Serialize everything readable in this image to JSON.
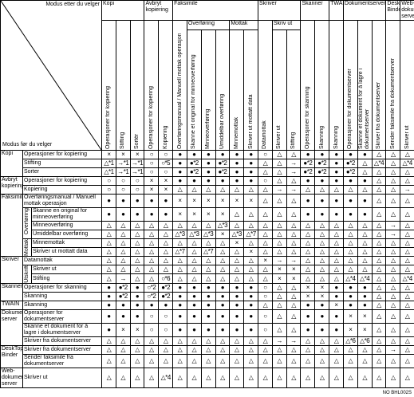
{
  "header": {
    "corner_top": "Modus etter du velger",
    "corner_bottom": "Modus før du velger"
  },
  "column_groups": [
    {
      "label": "Kopi",
      "subgroups": [
        {
          "columns": [
            "Operasjoner for kopiering",
            "Stifting",
            "Sortér"
          ]
        }
      ]
    },
    {
      "label": "Avbryt kopiering",
      "subgroups": [
        {
          "columns": [
            "Operasjoner for kopiering",
            "Kopiering"
          ]
        }
      ]
    },
    {
      "label": "Faksimile",
      "subgroups": [
        {
          "columns": [
            "Overføringsmanual / Manuell mottak operasjon"
          ]
        },
        {
          "label": "Overføring",
          "columns": [
            "Skanne et original for minneoverføring",
            "Minneoverføring",
            "Umiddelbar overføring"
          ]
        },
        {
          "label": "Mottak",
          "columns": [
            "Minnemottak",
            "Skriver ut mottatt data"
          ]
        }
      ]
    },
    {
      "label": "Skriver",
      "subgroups": [
        {
          "columns": [
            "Datamottak"
          ]
        },
        {
          "label": "Skriv ut",
          "columns": [
            "Skriver ut",
            "Stifting"
          ]
        }
      ]
    },
    {
      "label": "Skanner",
      "subgroups": [
        {
          "columns": [
            "Operasjoner for skanning",
            "Skanning"
          ]
        }
      ]
    },
    {
      "label": "TWAIN",
      "subgroups": [
        {
          "columns": [
            "Skanning"
          ]
        }
      ]
    },
    {
      "label": "Dokumentserver",
      "subgroups": [
        {
          "columns": [
            "Operasjoner for dokumentserver",
            "Skanne et dokument for å lagre i dokumentserver",
            "Skriver fra dokumentserver"
          ]
        }
      ]
    },
    {
      "label": "DeskTop Binder",
      "subgroups": [
        {
          "columns": [
            "Sender faksimile fra dokumentserver"
          ]
        }
      ]
    },
    {
      "label": "Web-dokument-server",
      "subgroups": [
        {
          "columns": [
            "Skriver ut"
          ]
        }
      ]
    }
  ],
  "row_groups": [
    {
      "label": "Kopi",
      "subgroups": [
        {
          "rows": [
            {
              "label": "Operasjoner for kopiering",
              "cells": [
                "×",
                "×",
                "×",
                "○",
                "○",
                "●",
                "●",
                "●",
                "●",
                "●",
                "●",
                "○",
                "△",
                "△",
                "●",
                "●",
                "●",
                "●",
                "●",
                "△",
                "△",
                "△"
              ]
            },
            {
              "label": "Stifting",
              "cells": [
                "△*1",
                "→*1",
                "→*1",
                "○",
                "○*5",
                "●",
                "●*2",
                "●",
                "●*2",
                "●",
                "●",
                "△",
                "△",
                "→",
                "●*2",
                "●*2",
                "●",
                "●*2",
                "△",
                "△*4",
                "△",
                "△*4"
              ]
            },
            {
              "label": "Sorter",
              "cells": [
                "△*1",
                "→*1",
                "→*1",
                "○",
                "○",
                "●",
                "●*2",
                "●",
                "●*2",
                "●",
                "●",
                "△",
                "△",
                "→",
                "●*2",
                "●*2",
                "●",
                "●*2",
                "△",
                "△",
                "△",
                "△"
              ]
            }
          ]
        }
      ]
    },
    {
      "label": "Avbryt kopiering",
      "subgroups": [
        {
          "rows": [
            {
              "label": "Operasjoner for kopiering",
              "cells": [
                "○",
                "○",
                "○",
                "×",
                "×",
                "●",
                "●",
                "●",
                "●",
                "●",
                "●",
                "○",
                "△",
                "△",
                "●",
                "●",
                "●",
                "●",
                "●",
                "△",
                "△",
                "△"
              ]
            },
            {
              "label": "Kopiering",
              "cells": [
                "○",
                "○",
                "○",
                "×",
                "×",
                "△",
                "△",
                "△",
                "△",
                "△",
                "△",
                "△",
                "→",
                "→",
                "△",
                "△",
                "△",
                "△",
                "△",
                "△",
                "△",
                "→"
              ]
            }
          ]
        }
      ]
    },
    {
      "label": "Faksimile",
      "subgroups": [
        {
          "rows": [
            {
              "label": "Overføringsmanual / Manuell mottak operasjon",
              "cells": [
                "●",
                "●",
                "●",
                "●",
                "●",
                "×",
                "×",
                "×",
                "×",
                "×",
                "×",
                "△",
                "△",
                "△",
                "●",
                "●",
                "●",
                "●",
                "●",
                "△",
                "△",
                "△"
              ]
            }
          ]
        },
        {
          "label": "Overføring",
          "rows": [
            {
              "label": "Skanne en original for minneoverføring",
              "cells": [
                "●",
                "●",
                "●",
                "●",
                "●",
                "×",
                "×",
                "×",
                "×",
                "△",
                "△",
                "△",
                "△",
                "△",
                "●",
                "●",
                "●",
                "●",
                "●",
                "△",
                "△",
                "△"
              ]
            },
            {
              "label": "Minneoverføring",
              "cells": [
                "△",
                "△",
                "△",
                "△",
                "△",
                "△",
                "△",
                "△",
                "△*3",
                "△",
                "△",
                "△",
                "△",
                "△",
                "△",
                "△",
                "△",
                "△",
                "△",
                "△",
                "→",
                "△"
              ]
            },
            {
              "label": "Umiddelbar overføring",
              "cells": [
                "△",
                "△",
                "△",
                "△",
                "△",
                "△*3",
                "△*3",
                "△*3",
                "×",
                "△*3",
                "△*7",
                "△",
                "△",
                "△",
                "△",
                "△",
                "△",
                "△",
                "△",
                "△",
                "→",
                "△"
              ]
            }
          ]
        },
        {
          "label": "Mottak",
          "rows": [
            {
              "label": "Minnemottak",
              "cells": [
                "△",
                "△",
                "△",
                "△",
                "△",
                "△",
                "△",
                "△",
                "△",
                "×",
                "△",
                "△",
                "△",
                "△",
                "△",
                "△",
                "△",
                "△",
                "△",
                "△",
                "△",
                "△"
              ]
            },
            {
              "label": "Skriver ut mottatt data",
              "cells": [
                "△",
                "△",
                "△",
                "△",
                "△",
                "△*7",
                "△",
                "△*7",
                "△",
                "△",
                "×",
                "△",
                "△",
                "△",
                "△",
                "△",
                "△",
                "△",
                "△",
                "△",
                "△",
                "△"
              ]
            }
          ]
        }
      ]
    },
    {
      "label": "Skriver",
      "subgroups": [
        {
          "rows": [
            {
              "label": "Datamottak",
              "cells": [
                "△",
                "△",
                "△",
                "△",
                "△",
                "△",
                "△",
                "△",
                "△",
                "△",
                "△",
                "×",
                "→",
                "→",
                "△",
                "△",
                "△",
                "△",
                "△",
                "△",
                "△",
                "△"
              ]
            }
          ]
        },
        {
          "label": "Utskrift",
          "rows": [
            {
              "label": "Skriver ut",
              "cells": [
                "△",
                "△",
                "△",
                "△",
                "△",
                "△",
                "△",
                "△",
                "△",
                "△",
                "△",
                "△",
                "×",
                "×",
                "△",
                "△",
                "△",
                "△",
                "△",
                "△",
                "△",
                "△"
              ]
            },
            {
              "label": "Stifting",
              "cells": [
                "△",
                "→",
                "△",
                "△",
                "○*6",
                "△",
                "△",
                "△",
                "△",
                "△",
                "△",
                "△",
                "×",
                "×",
                "△",
                "△",
                "△",
                "△*4",
                "△*4",
                "△",
                "△",
                "△*4"
              ]
            }
          ]
        }
      ]
    },
    {
      "label": "Skanner",
      "subgroups": [
        {
          "rows": [
            {
              "label": "Operasjoner for skanning",
              "cells": [
                "●",
                "●*2",
                "●",
                "○*2",
                "●*2",
                "●",
                "●",
                "●",
                "●",
                "●",
                "●",
                "○",
                "△",
                "△",
                "×",
                "×",
                "●",
                "●",
                "●",
                "△",
                "△",
                "△"
              ]
            },
            {
              "label": "Skanning",
              "cells": [
                "●",
                "●*2",
                "●",
                "○*2",
                "●*2",
                "●",
                "●",
                "●",
                "●",
                "●",
                "●",
                "○",
                "△",
                "△",
                "×",
                "×",
                "●",
                "●",
                "●",
                "△",
                "△",
                "△"
              ]
            }
          ]
        }
      ]
    },
    {
      "label": "TWAIN",
      "subgroups": [
        {
          "rows": [
            {
              "label": "Skanning",
              "cells": [
                "●",
                "●",
                "●",
                "●",
                "●",
                "●",
                "●",
                "●",
                "●",
                "●",
                "●",
                "△",
                "△",
                "△",
                "●",
                "●",
                "×",
                "●",
                "●",
                "△",
                "△",
                "△"
              ]
            }
          ]
        }
      ]
    },
    {
      "label": "Dokument-server",
      "subgroups": [
        {
          "rows": [
            {
              "label": "Operasjoner for dokumentserver",
              "cells": [
                "●",
                "●",
                "●",
                "○",
                "○",
                "●",
                "●",
                "●",
                "●",
                "●",
                "●",
                "○",
                "△",
                "△",
                "●",
                "●",
                "●",
                "×",
                "×",
                "△",
                "△",
                "△"
              ]
            },
            {
              "label": "Skanne et dokument for å lagre i dokumentserver",
              "cells": [
                "●",
                "×",
                "×",
                "○",
                "○",
                "●",
                "●",
                "●",
                "●",
                "●",
                "●",
                "○",
                "△",
                "△",
                "●",
                "●",
                "●",
                "×",
                "×",
                "△",
                "△",
                "△"
              ]
            },
            {
              "label": "Skriver fra dokumentserver",
              "cells": [
                "△",
                "△",
                "△",
                "△",
                "△",
                "△",
                "△",
                "△",
                "△",
                "△",
                "△",
                "△",
                "→",
                "→",
                "△",
                "△",
                "△",
                "△*6",
                "△*6",
                "△",
                "△",
                "△"
              ]
            }
          ]
        }
      ]
    },
    {
      "label": "DeskTop Binder",
      "subgroups": [
        {
          "rows": [
            {
              "label": "Skriver fra dokumentserver",
              "cells": [
                "△",
                "△",
                "△",
                "△",
                "△",
                "△",
                "△",
                "△",
                "△",
                "△",
                "△",
                "△",
                "△",
                "△",
                "△",
                "△",
                "△",
                "△",
                "△",
                "△",
                "→",
                "△"
              ]
            },
            {
              "label": "Sender faksimile fra dokumentserver",
              "cells": [
                "△",
                "△",
                "△",
                "△",
                "△",
                "△",
                "△",
                "△",
                "△",
                "△",
                "△",
                "△",
                "△",
                "△",
                "△",
                "△",
                "△",
                "△",
                "△",
                "△",
                "△",
                "△"
              ]
            }
          ]
        }
      ]
    },
    {
      "label": "Web-dokument-server",
      "subgroups": [
        {
          "rows": [
            {
              "label": "Skriver ut",
              "cells": [
                "△",
                "△",
                "△",
                "△",
                "△*4",
                "△",
                "△",
                "△",
                "△",
                "△",
                "△",
                "△",
                "△",
                "△",
                "△",
                "△",
                "△",
                "△",
                "△",
                "△",
                "△",
                "△"
              ]
            }
          ]
        }
      ]
    }
  ],
  "footer": "NO BHL002S"
}
